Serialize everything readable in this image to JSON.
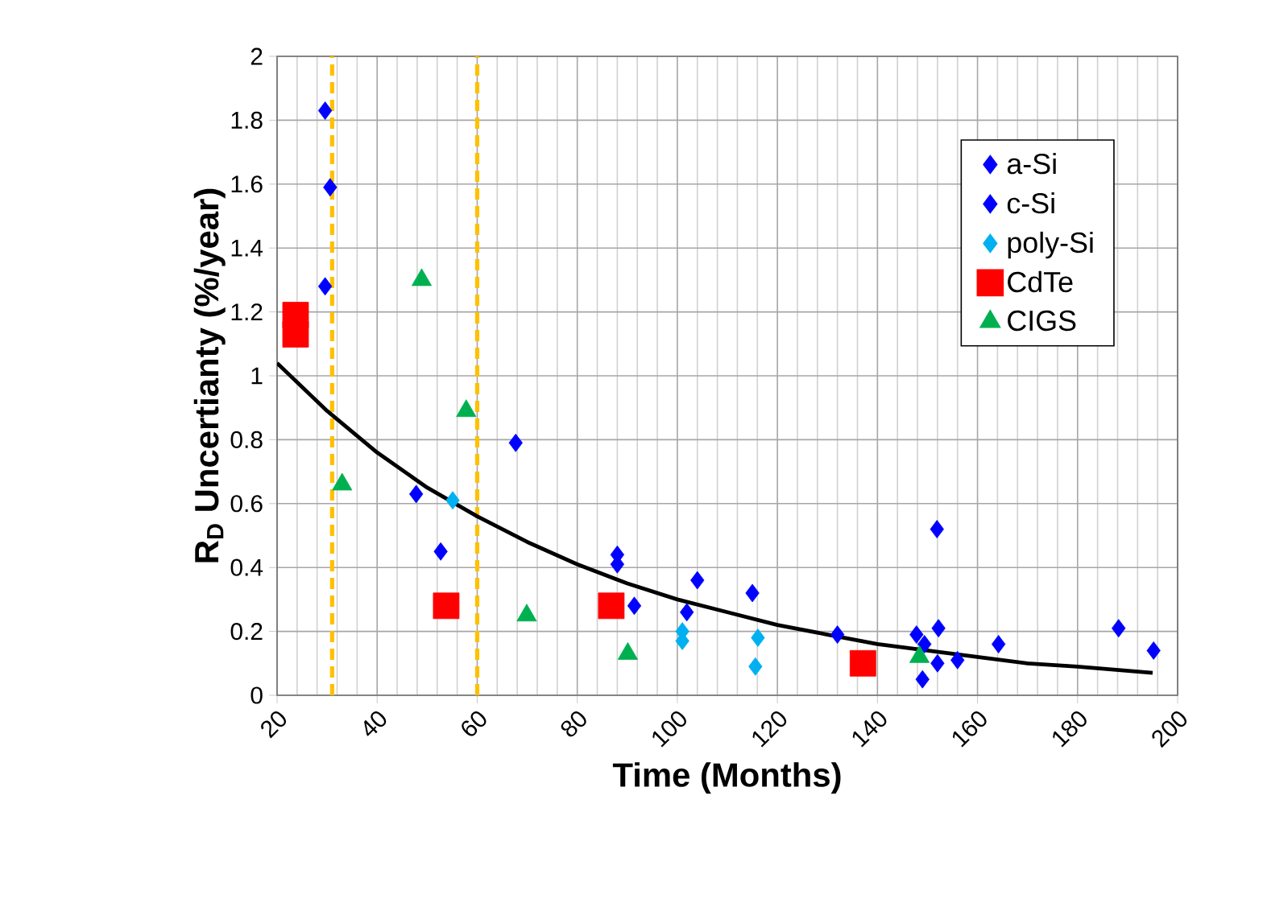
{
  "chart_data": {
    "type": "scatter",
    "xlabel": "Time (Months)",
    "ylabel": "**R$_{D}$ Uncertianty (%/year)**",
    "xlim": [
      20,
      200
    ],
    "xticks": [
      20,
      40,
      60,
      80,
      100,
      120,
      140,
      160,
      180,
      200
    ],
    "ylim": [
      0,
      2
    ],
    "yticks": [
      0,
      0.2,
      0.4,
      0.6,
      0.8,
      1,
      1.2,
      1.4,
      1.6,
      1.8,
      2
    ],
    "grid": true,
    "legend": "top right",
    "ref_lines": [
      {
        "axis": "x",
        "value": 31,
        "color": "#ffc000",
        "line_style": "dashed"
      },
      {
        "axis": "x",
        "value": 60,
        "color": "#ffc000",
        "line_style": "dashed"
      }
    ],
    "series": [
      {
        "name": "a-Si",
        "color": "#0000ff",
        "marker": "diamond",
        "x": [
          29.6,
          30.6,
          29.6,
          67.7,
          52.7,
          88,
          88,
          91.4,
          104,
          101.9,
          115,
          132,
          151.9,
          147.8,
          152.2,
          164.2,
          188.2,
          195.2
        ],
        "values": [
          1.83,
          1.59,
          1.28,
          0.79,
          0.45,
          0.44,
          0.41,
          0.28,
          0.36,
          0.26,
          0.32,
          0.19,
          0.52,
          0.19,
          0.21,
          0.16,
          0.21,
          0.14
        ]
      },
      {
        "name": "c-Si",
        "color": "#0000ff",
        "marker": "diamond",
        "x": [
          47.8,
          149.4,
          149,
          152,
          156
        ],
        "values": [
          0.63,
          0.16,
          0.05,
          0.1,
          0.11
        ]
      },
      {
        "name": "poly-Si",
        "color": "#00b0f0",
        "marker": "diamond",
        "x": [
          55.1,
          101,
          101,
          116.1,
          115.6
        ],
        "values": [
          0.61,
          0.2,
          0.17,
          0.18,
          0.09
        ]
      },
      {
        "name": "CdTe",
        "color": "#ff0000",
        "marker": "square",
        "x": [
          23.7,
          23.7,
          53.8,
          86.8,
          137.1
        ],
        "values": [
          1.19,
          1.13,
          0.28,
          0.28,
          0.1
        ]
      },
      {
        "name": "CIGS",
        "color": "#00b050",
        "marker": "triangle",
        "x": [
          48.9,
          57.8,
          33,
          69.9,
          90.1,
          148.4
        ],
        "values": [
          1.3,
          0.89,
          0.66,
          0.25,
          0.13,
          0.12
        ]
      },
      {
        "type": "line",
        "color": "#000000",
        "marker": "none",
        "x": [
          20,
          30,
          40,
          50,
          60,
          70,
          80,
          90,
          100,
          110,
          120,
          130,
          140,
          150,
          160,
          170,
          180,
          195
        ],
        "values": [
          1.04,
          0.89,
          0.76,
          0.65,
          0.56,
          0.48,
          0.41,
          0.35,
          0.3,
          0.26,
          0.22,
          0.19,
          0.16,
          0.14,
          0.12,
          0.1,
          0.09,
          0.07
        ]
      }
    ]
  }
}
